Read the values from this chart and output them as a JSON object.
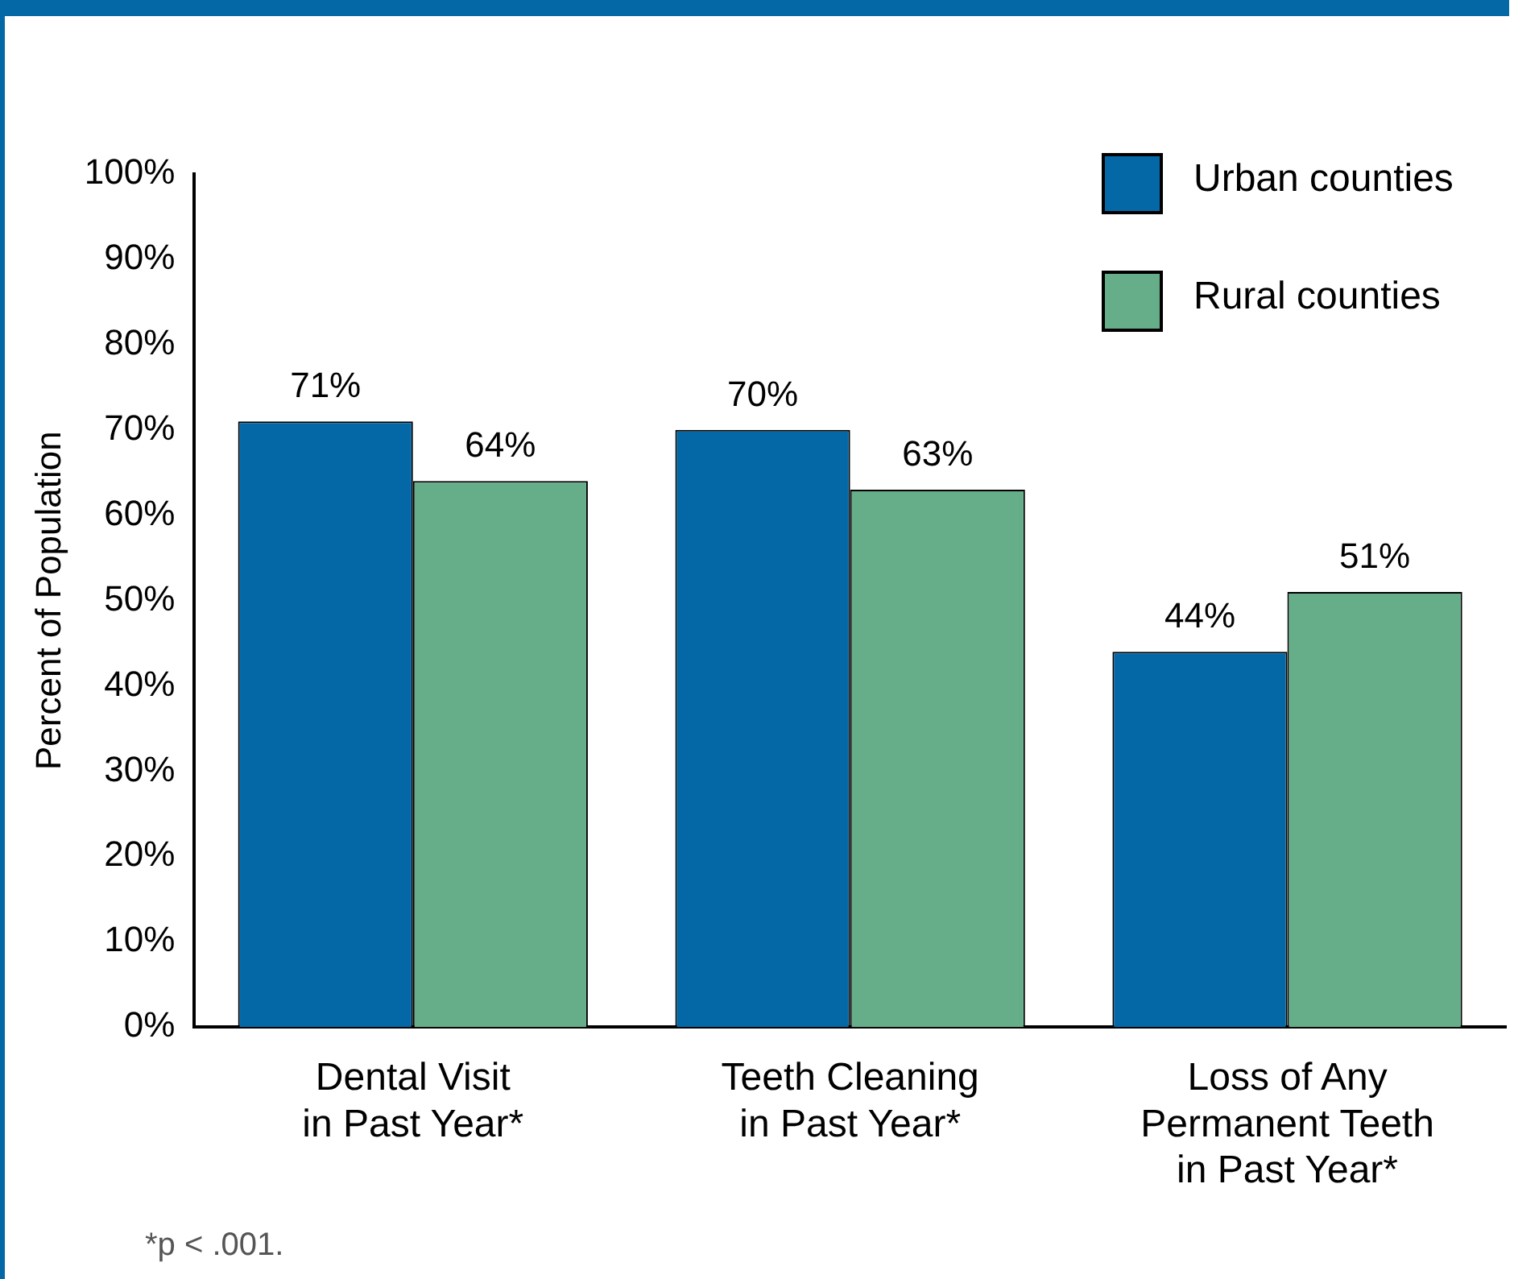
{
  "chart_data": {
    "type": "bar",
    "ylabel": "Percent of Population",
    "categories": [
      "Dental Visit\nin Past Year*",
      "Teeth Cleaning\nin Past Year*",
      "Loss of Any\nPermanent Teeth\nin Past Year*"
    ],
    "series": [
      {
        "name": "Urban counties",
        "color": "#0568a6",
        "values": [
          71,
          70,
          44
        ],
        "value_labels": [
          "71%",
          "70%",
          "44%"
        ]
      },
      {
        "name": "Rural counties",
        "color": "#66ae8a",
        "values": [
          64,
          63,
          51
        ],
        "value_labels": [
          "64%",
          "63%",
          "51%"
        ]
      }
    ],
    "ylim": [
      0,
      100
    ],
    "yticks": [
      {
        "value": 0,
        "label": "0%"
      },
      {
        "value": 10,
        "label": "10%"
      },
      {
        "value": 20,
        "label": "20%"
      },
      {
        "value": 30,
        "label": "30%"
      },
      {
        "value": 40,
        "label": "40%"
      },
      {
        "value": 50,
        "label": "50%"
      },
      {
        "value": 60,
        "label": "60%"
      },
      {
        "value": 70,
        "label": "70%"
      },
      {
        "value": 80,
        "label": "80%"
      },
      {
        "value": 90,
        "label": "90%"
      },
      {
        "value": 100,
        "label": "100%"
      }
    ],
    "grid": false,
    "legend": "top right",
    "annotations": [
      "*p < .001."
    ]
  }
}
